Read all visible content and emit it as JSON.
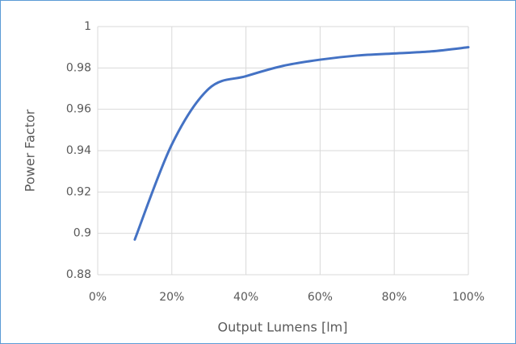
{
  "chart_data": {
    "type": "line",
    "xlabel": "Output Lumens [lm]",
    "ylabel": "Power Factor",
    "x": [
      10,
      20,
      30,
      40,
      50,
      60,
      70,
      80,
      90,
      100
    ],
    "series": [
      {
        "name": "Power Factor",
        "color": "#4472c4",
        "values": [
          0.897,
          0.943,
          0.97,
          0.976,
          0.981,
          0.984,
          0.986,
          0.987,
          0.988,
          0.99
        ]
      }
    ],
    "xlim": [
      0,
      100
    ],
    "xticks": [
      {
        "value": 0,
        "label": "0%"
      },
      {
        "value": 20,
        "label": "20%"
      },
      {
        "value": 40,
        "label": "40%"
      },
      {
        "value": 60,
        "label": "60%"
      },
      {
        "value": 80,
        "label": "80%"
      },
      {
        "value": 100,
        "label": "100%"
      }
    ],
    "ylim": [
      0.88,
      1
    ],
    "yticks": [
      0.88,
      0.9,
      0.92,
      0.94,
      0.96,
      0.98,
      1
    ],
    "grid": true
  }
}
